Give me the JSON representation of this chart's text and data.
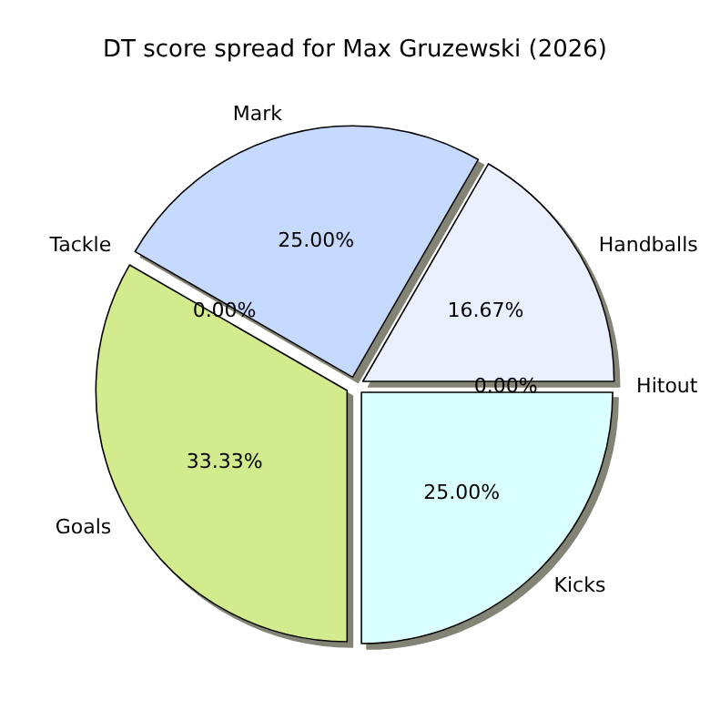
{
  "chart_data": {
    "type": "pie",
    "title": "DT score spread for Max Gruzewski (2026)",
    "categories": [
      "Handballs",
      "Mark",
      "Tackle",
      "Goals",
      "Kicks",
      "Hitout"
    ],
    "values": [
      16.67,
      25,
      0,
      33.33,
      25,
      0
    ],
    "colors": [
      "#eaf0ff",
      "#c6d9ff",
      "#ffd0d0",
      "#d2eb8c",
      "#daffff",
      "#ffe8c0"
    ],
    "value_labels": [
      "16.67%",
      "25.00%",
      "0.00%",
      "33.33%",
      "25.00%",
      "0.00%"
    ],
    "legend": false
  }
}
